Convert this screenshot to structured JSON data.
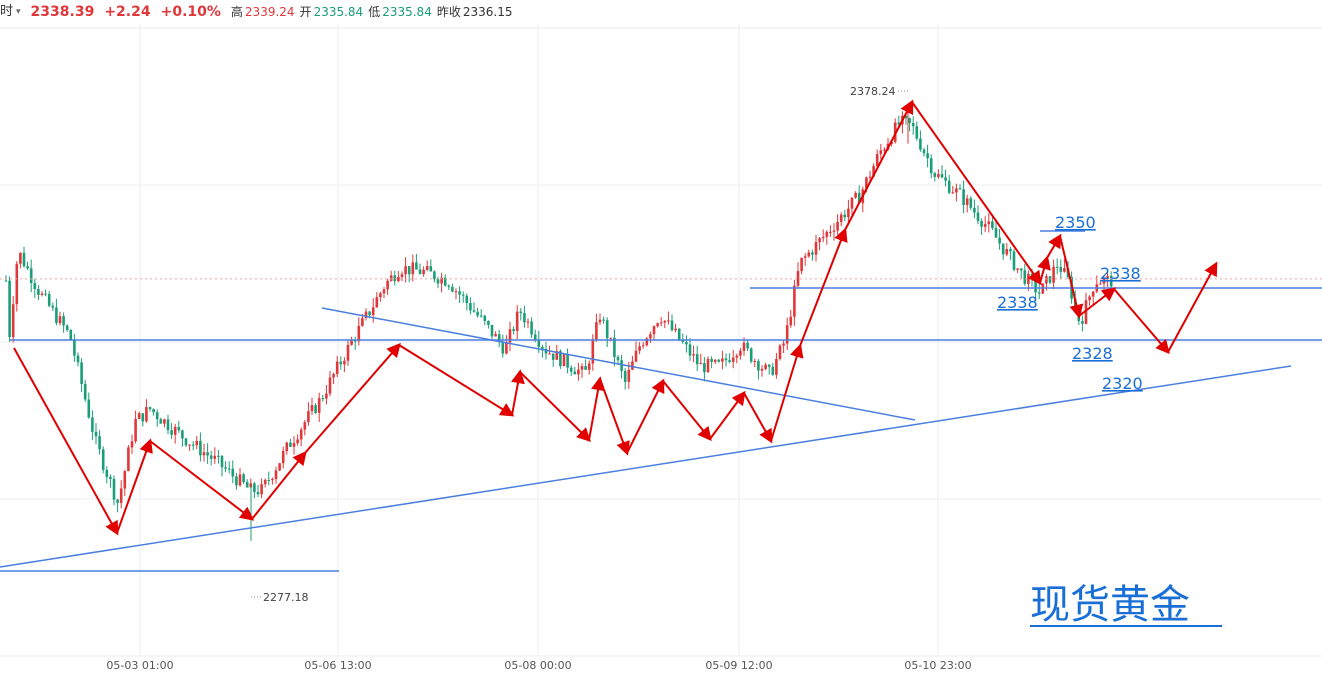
{
  "header": {
    "timeframe": "时",
    "dropdown_glyph": "▾",
    "last_price": "2338.39",
    "change": "+2.24",
    "change_pct": "+0.10%",
    "high_label": "高",
    "high": "2339.24",
    "open_label": "开",
    "open": "2335.84",
    "low_label": "低",
    "low": "2335.84",
    "prev_label": "昨收",
    "prev": "2336.15"
  },
  "chart_data": {
    "type": "candlestick",
    "title": "现货黄金",
    "x_tick_labels": [
      "05-03 01:00",
      "05-06 13:00",
      "05-08 00:00",
      "05-09 12:00",
      "05-10 23:00"
    ],
    "y_range": [
      2265,
      2390
    ],
    "extremes": {
      "high_label": "2378.24",
      "high": 2378.24,
      "low_label": "2277.18",
      "low": 2277.18
    },
    "levels": [
      {
        "label": "2350",
        "value": 2350
      },
      {
        "label": "2338",
        "value": 2338
      },
      {
        "label": "2338",
        "value": 2338
      },
      {
        "label": "2328",
        "value": 2328
      },
      {
        "label": "2320",
        "value": 2320
      }
    ],
    "colors": {
      "up": "#e0373b",
      "down": "#1a9e77",
      "trendline": "#4a7fe0",
      "arrow": "#e00000",
      "level_text": "#1a6fd6"
    },
    "grid": true
  }
}
